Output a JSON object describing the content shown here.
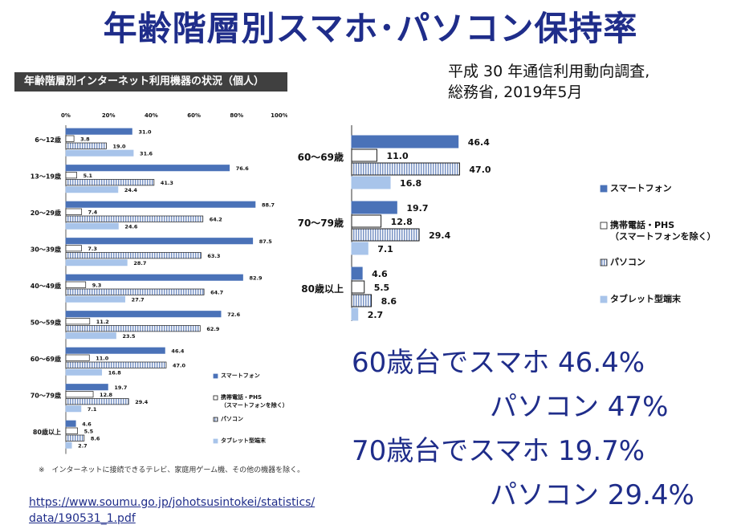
{
  "slide": {
    "title": "年齢階層別スマホ･パソコン保持率",
    "source_line1": "平成 30 年通信利用動向調査,",
    "source_line2": "総務省, 2019年5月",
    "url_line1": "https://www.soumu.go.jp/johotsusintokei/statistics/",
    "url_line2": "data/190531_1.pdf",
    "highlights": [
      "60歳台でスマホ 46.4%",
      "パソコン 47%",
      "70歳台でスマホ 19.7%",
      "パソコン 29.4%"
    ]
  },
  "chart_data": [
    {
      "type": "bar",
      "orientation": "horizontal",
      "title": "年齢階層別インターネット利用機器の状況（個人）",
      "footnote": "※　インターネットに接続できるテレビ、家庭用ゲーム機、その他の機器を除く。",
      "xlim": [
        0,
        100
      ],
      "x_ticks": [
        "0%",
        "20%",
        "40%",
        "60%",
        "80%",
        "100%"
      ],
      "categories": [
        "6～12歳",
        "13～19歳",
        "20～29歳",
        "30～39歳",
        "40～49歳",
        "50～59歳",
        "60～69歳",
        "70～79歳",
        "80歳以上"
      ],
      "series": [
        {
          "name": "スマートフォン",
          "values": [
            31.0,
            76.6,
            88.7,
            87.5,
            82.9,
            72.6,
            46.4,
            19.7,
            4.6
          ]
        },
        {
          "name": "携帯電話・PHS（スマートフォンを除く）",
          "values": [
            3.8,
            5.1,
            7.4,
            7.3,
            9.3,
            11.2,
            11.0,
            12.8,
            5.5
          ]
        },
        {
          "name": "パソコン",
          "values": [
            19.0,
            41.3,
            64.2,
            63.3,
            64.7,
            62.9,
            47.0,
            29.4,
            8.6
          ]
        },
        {
          "name": "タブレット型端末",
          "values": [
            31.6,
            24.4,
            24.6,
            28.7,
            27.7,
            23.5,
            16.8,
            7.1,
            2.7
          ]
        }
      ],
      "legend": [
        "スマートフォン",
        "携帯電話・PHS",
        "（スマートフォンを除く）",
        "パソコン",
        "タブレット型端末"
      ],
      "legend_position": "right",
      "colors": {
        "smartphone": "#4a72b8",
        "feature": "#ffffff",
        "pc": "#dbe5f5",
        "tablet": "#a8c4ea",
        "edge": "#1a1a1a"
      }
    },
    {
      "type": "bar",
      "orientation": "horizontal",
      "xlim": [
        0,
        100
      ],
      "categories": [
        "60～69歳",
        "70～79歳",
        "80歳以上"
      ],
      "series": [
        {
          "name": "スマートフォン",
          "values": [
            46.4,
            19.7,
            4.6
          ]
        },
        {
          "name": "携帯電話・PHS（スマートフォンを除く）",
          "values": [
            11.0,
            12.8,
            5.5
          ]
        },
        {
          "name": "パソコン",
          "values": [
            47.0,
            29.4,
            8.6
          ]
        },
        {
          "name": "タブレット型端末",
          "values": [
            16.8,
            7.1,
            2.7
          ]
        }
      ],
      "legend": [
        "スマートフォン",
        "携帯電話・PHS",
        "（スマートフォンを除く）",
        "パソコン",
        "タブレット型端末"
      ],
      "legend_position": "right"
    }
  ]
}
